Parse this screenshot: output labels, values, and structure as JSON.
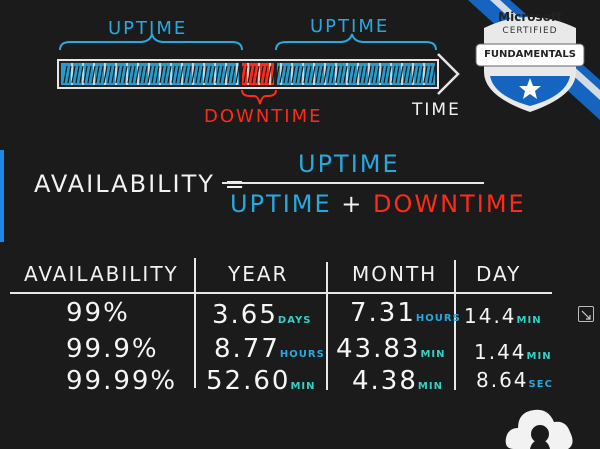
{
  "timeline": {
    "uptime_left": "UPTIME",
    "uptime_right": "UPTIME",
    "downtime": "DOWNTIME",
    "time": "TIME"
  },
  "badge": {
    "brand": "Microsoft",
    "certified": "CERTIFIED",
    "level": "FUNDAMENTALS"
  },
  "formula": {
    "lhs": "AVAILABILITY =",
    "numerator": "UPTIME",
    "denominator_uptime": "UPTIME",
    "plus": "+",
    "denominator_downtime": "DOWNTIME"
  },
  "table": {
    "headers": [
      "AVAILABILITY",
      "YEAR",
      "MONTH",
      "DAY"
    ],
    "rows": [
      {
        "availability": "99%",
        "year": "3.65",
        "year_unit": "DAYS",
        "month": "7.31",
        "month_unit": "HOURS",
        "day": "14.4",
        "day_unit": "MIN"
      },
      {
        "availability": "99.9%",
        "year": "8.77",
        "year_unit": "HOURS",
        "month": "43.83",
        "month_unit": "MIN",
        "day": "1.44",
        "day_unit": "MIN"
      },
      {
        "availability": "99.99%",
        "year": "52.60",
        "year_unit": "MIN",
        "month": "4.38",
        "month_unit": "MIN",
        "day": "8.64",
        "day_unit": "SEC"
      }
    ]
  },
  "colors": {
    "uptime": "#29a8e0",
    "downtime": "#ff2a1a",
    "background": "#1b1b1b",
    "badge_blue": "#1565c0"
  },
  "icons": [
    "expand-icon",
    "cloud-icon",
    "star-icon"
  ]
}
